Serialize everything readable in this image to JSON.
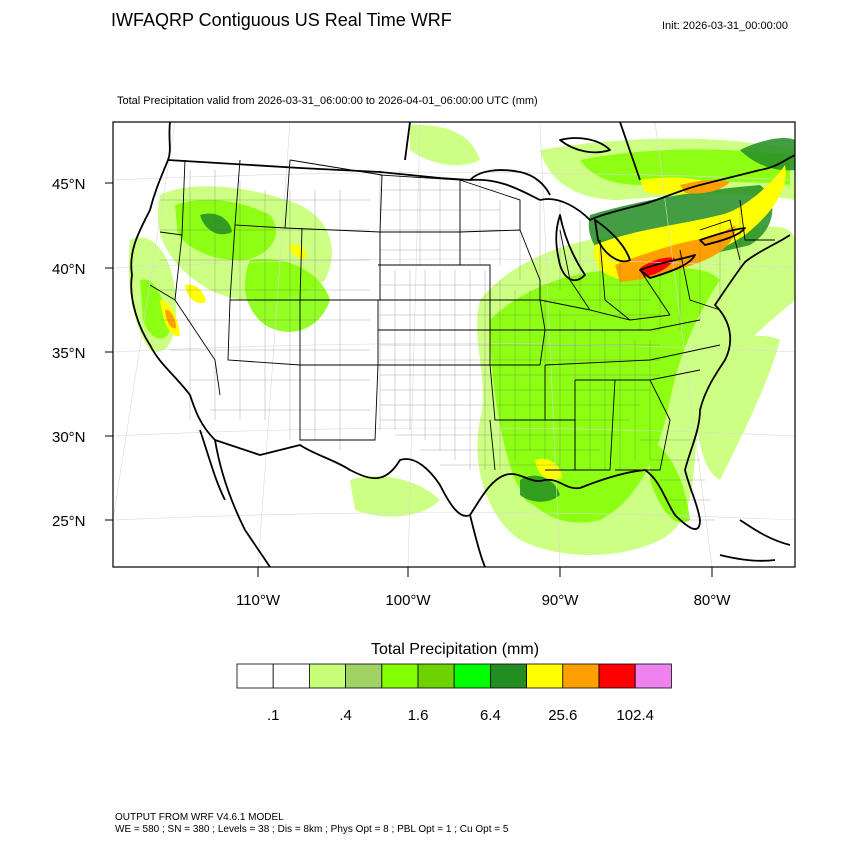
{
  "header": {
    "title": "IWFAQRP Contiguous US Real Time WRF",
    "init": "Init: 2026-03-31_00:00:00",
    "subtitle": "Total Precipitation valid from 2026-03-31_06:00:00 to 2026-04-01_06:00:00 UTC   (mm)"
  },
  "map": {
    "projection": "lambert-conformal",
    "base_layers": [
      "coastline",
      "country-borders",
      "state-borders",
      "county-borders",
      "graticule"
    ],
    "lat_labels": [
      "45°N",
      "40°N",
      "35°N",
      "30°N",
      "25°N"
    ],
    "lon_labels": [
      "110°W",
      "100°W",
      "90°W",
      "80°W"
    ]
  },
  "legend": {
    "title": "Total Precipitation  (mm)",
    "colors": [
      "#ffffff",
      "#ffffff",
      "#c8ff78",
      "#a0d264",
      "#82ff00",
      "#6ed200",
      "#00ff00",
      "#238c23",
      "#ffff00",
      "#ffa000",
      "#ff0000",
      "#ee82ee"
    ],
    "tick_labels": [
      ".1",
      ".4",
      "1.6",
      "6.4",
      "25.6",
      "102.4"
    ]
  },
  "footer": {
    "line1": "OUTPUT FROM WRF V4.6.1 MODEL",
    "line2": "WE = 580 ; SN = 380 ; Levels = 38 ; Dis = 8km ; Phys Opt = 8 ; PBL Opt = 1 ; Cu Opt = 5"
  }
}
